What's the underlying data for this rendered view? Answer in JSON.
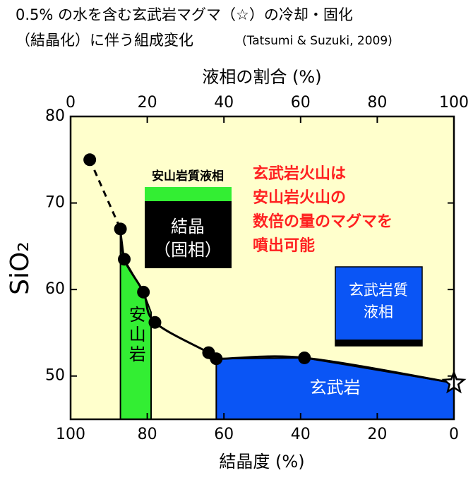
{
  "chart_data": {
    "type": "line",
    "title": [
      "0.5% の水を含む玄武岩マグマ（☆）の冷却・固化",
      "（結晶化）に伴う組成変化"
    ],
    "citation": "(Tatsumi & Suzuki, 2009)",
    "xlabel": "結晶度 (%)",
    "x2label": "液相の割合 (%)",
    "ylabel": "SiO₂",
    "xlim": [
      100,
      0
    ],
    "xticks": [
      100,
      80,
      60,
      40,
      20,
      0
    ],
    "x2lim": [
      0,
      100
    ],
    "x2ticks": [
      0,
      20,
      40,
      60,
      80,
      100
    ],
    "ylim": [
      45,
      80
    ],
    "yticks": [
      50,
      60,
      70,
      80
    ],
    "background": "#ffffcc",
    "series": [
      {
        "color": "#000000",
        "x": [
          95,
          87,
          86,
          81,
          78,
          64,
          62,
          39,
          0
        ],
        "values": [
          75,
          67,
          63.5,
          59.7,
          56.2,
          52.7,
          52,
          52.1,
          49.2
        ],
        "dash_first": 1,
        "last_marker": "star"
      }
    ],
    "regions": [
      {
        "name": "安山岩",
        "color": "#33ee33",
        "x": [
          87,
          79
        ],
        "vertical": true
      },
      {
        "name": "玄武岩",
        "color": "#0a55f5",
        "x": [
          62,
          0
        ],
        "vertical": false
      }
    ],
    "annotations": {
      "liquid_andesite": "安山岩質液相",
      "crystal": [
        "結晶",
        "（固相）"
      ],
      "liquid_basalt": [
        "玄武岩質",
        "液相"
      ],
      "note": [
        "玄武岩火山は",
        "安山岩火山の",
        "数倍の量のマグマを",
        "噴出可能"
      ]
    }
  }
}
